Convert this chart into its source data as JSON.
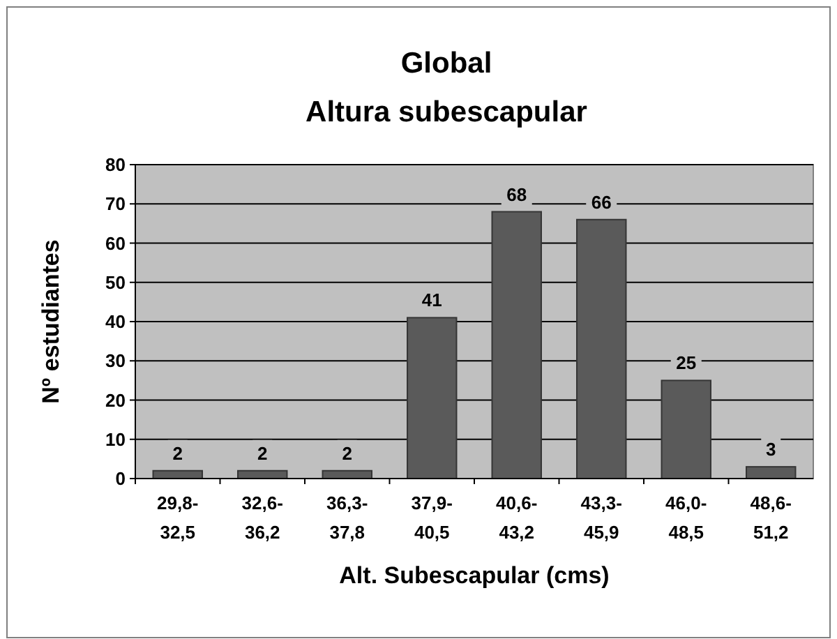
{
  "chart_data": {
    "type": "bar",
    "title": "Global",
    "subtitle": "Altura subescapular",
    "xlabel": "Alt. Subescapular (cms)",
    "ylabel": "Nº estudiantes",
    "categories": [
      "29,8-32,5",
      "32,6-36,2",
      "36,3-37,8",
      "37,9-40,5",
      "40,6-43,2",
      "43,3-45,9",
      "46,0-48,5",
      "48,6-51,2"
    ],
    "values": [
      2,
      2,
      2,
      41,
      68,
      66,
      25,
      3
    ],
    "color": "#5a5a5a",
    "ylim": [
      0,
      80
    ],
    "yticks": [
      0,
      10,
      20,
      30,
      40,
      50,
      60,
      70,
      80
    ],
    "grid": "y",
    "data_labels": true
  }
}
